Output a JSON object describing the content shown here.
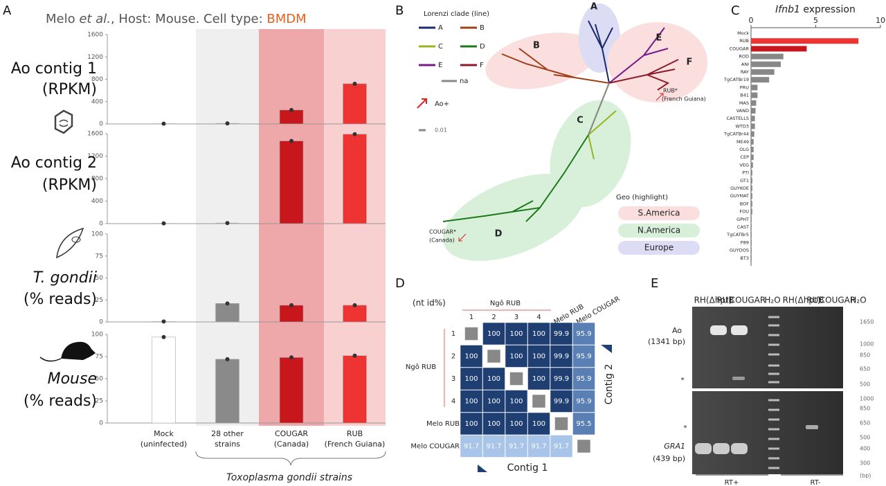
{
  "panel_labels": [
    "A",
    "B",
    "C",
    "D",
    "E"
  ],
  "panel_a": {
    "title_parts": [
      "Melo ",
      "et al.",
      ", Host: Mouse. Cell type: ",
      "BMDM"
    ],
    "categories": [
      "Mock",
      "28 other",
      "COUGAR",
      "RUB"
    ],
    "category_sublabels": [
      "(uninfected)",
      "strains",
      "(Canada)",
      "(French Guiana)"
    ],
    "category_colors": [
      "#888888",
      "#222222",
      "#a01010",
      "#e02020"
    ],
    "band_colors": [
      "#ffffff",
      "#efefef",
      "#eea8aa",
      "#f8d0d0"
    ],
    "bar_colors": [
      "#ffffff",
      "#8a8a8a",
      "#c8161d",
      "#ee3333"
    ],
    "xlabel": "Toxoplasma gondii strains"
  },
  "chart_data": [
    {
      "type": "bar",
      "ylabel": [
        "Ao contig 1",
        "(RPKM)"
      ],
      "ylabel_italic": false,
      "values": [
        5,
        10,
        250,
        720
      ],
      "ylim": [
        0,
        1600
      ],
      "yticks": [
        0,
        400,
        800,
        1200,
        1600
      ]
    },
    {
      "type": "bar",
      "ylabel": [
        "Ao contig 2",
        "(RPKM)"
      ],
      "ylabel_italic": false,
      "values": [
        5,
        10,
        1470,
        1590
      ],
      "ylim": [
        0,
        1600
      ],
      "yticks": [
        0,
        400,
        800,
        1200,
        1600
      ]
    },
    {
      "type": "bar",
      "ylabel": [
        "T. gondii",
        "(% reads)"
      ],
      "ylabel_italic": true,
      "values": [
        0.5,
        21,
        19,
        19
      ],
      "ylim": [
        0,
        100
      ],
      "yticks": [
        0,
        25,
        50,
        75,
        100
      ]
    },
    {
      "type": "bar",
      "ylabel": [
        "Mouse",
        "(% reads)"
      ],
      "ylabel_italic": true,
      "values": [
        97,
        72,
        74,
        76
      ],
      "ylim": [
        0,
        100
      ],
      "yticks": [
        0,
        25,
        50,
        75,
        100
      ]
    },
    {
      "type": "barh",
      "title_parts": [
        "Ifnb1",
        " expression"
      ],
      "categories": [
        "Mock",
        "RUB",
        "COUGAR",
        "ROD",
        "ANI",
        "RAY",
        "TgCATBr19",
        "PRU",
        "B41",
        "MAS",
        "VAND",
        "CASTELLS",
        "WTD3",
        "TgCATBr44",
        "ME49",
        "OLG",
        "CEP",
        "VEG",
        "PTI",
        "GT1",
        "GUYKOE",
        "GUYMAT",
        "BOF",
        "FOU",
        "GPHT",
        "CAST",
        "TgCATBr5",
        "P89",
        "GUYDOS",
        "BT3"
      ],
      "values": [
        0,
        8.3,
        4.3,
        2.5,
        2.3,
        1.8,
        1.4,
        0.5,
        0.5,
        0.4,
        0.35,
        0.3,
        0.3,
        0.25,
        0.2,
        0.2,
        0.2,
        0.15,
        0.1,
        0.1,
        0.1,
        0.1,
        0.1,
        0.1,
        0.05,
        0.05,
        0.05,
        0.05,
        0.05,
        0.05
      ],
      "colors": [
        "#888888",
        "#ee3333",
        "#c8161d",
        "#888888",
        "#888888",
        "#888888",
        "#888888",
        "#888888",
        "#888888",
        "#888888",
        "#888888",
        "#888888",
        "#888888",
        "#888888",
        "#888888",
        "#888888",
        "#888888",
        "#888888",
        "#888888",
        "#888888",
        "#888888",
        "#888888",
        "#888888",
        "#888888",
        "#888888",
        "#888888",
        "#888888",
        "#888888",
        "#888888",
        "#888888"
      ],
      "xlim": [
        0,
        10
      ],
      "xticks": [
        0,
        5,
        10
      ]
    }
  ],
  "tree": {
    "legend_title": "Lorenzi clade (line)",
    "clades": [
      {
        "name": "A",
        "color": "#1a2a6c"
      },
      {
        "name": "B",
        "color": "#a0401a"
      },
      {
        "name": "C",
        "color": "#9ab51a"
      },
      {
        "name": "D",
        "color": "#1a7a1a"
      },
      {
        "name": "E",
        "color": "#7a1a8a"
      },
      {
        "name": "F",
        "color": "#8a1a2a"
      }
    ],
    "na": "na",
    "ao_plus": "Ao+",
    "scale": "0.01",
    "geo_title": "Geo (highlight)",
    "geo": [
      "S.America",
      "N.America",
      "Europe"
    ],
    "rub": [
      "RUB*",
      "(French Guiana)"
    ],
    "cougar": [
      "COUGAR*",
      "(Canada)"
    ]
  },
  "matrix": {
    "unit": "(nt id%)",
    "group_label": "Ngô RUB",
    "labels": [
      "1",
      "2",
      "3",
      "4",
      "Melo RUB",
      "Melo COUGAR"
    ],
    "rows": [
      [
        null,
        100,
        100,
        100,
        99.9,
        95.9
      ],
      [
        100,
        null,
        100,
        100,
        99.9,
        95.9
      ],
      [
        100,
        100,
        null,
        100,
        99.9,
        95.9
      ],
      [
        100,
        100,
        100,
        null,
        99.9,
        95.9
      ],
      [
        100,
        100,
        100,
        100,
        null,
        95.5
      ],
      [
        91.7,
        91.7,
        91.7,
        91.7,
        91.7,
        null
      ]
    ],
    "col_axis": "Contig 1",
    "row_axis": "Contig 2"
  },
  "gel": {
    "lanes": [
      "RH(Δhpt)",
      "RUB",
      "COUGAR",
      "H₂O"
    ],
    "ao": [
      "Ao",
      "(1341 bp)"
    ],
    "gra1": [
      "GRA1",
      "(439 bp)"
    ],
    "star": "*",
    "ladder_top": [
      "1650",
      "1000",
      "850",
      "650",
      "500"
    ],
    "ladder_bottom": [
      "1000",
      "850",
      "650",
      "500",
      "400",
      "300"
    ],
    "unit": "(bp)",
    "rt": [
      "RT+",
      "RT-"
    ]
  }
}
